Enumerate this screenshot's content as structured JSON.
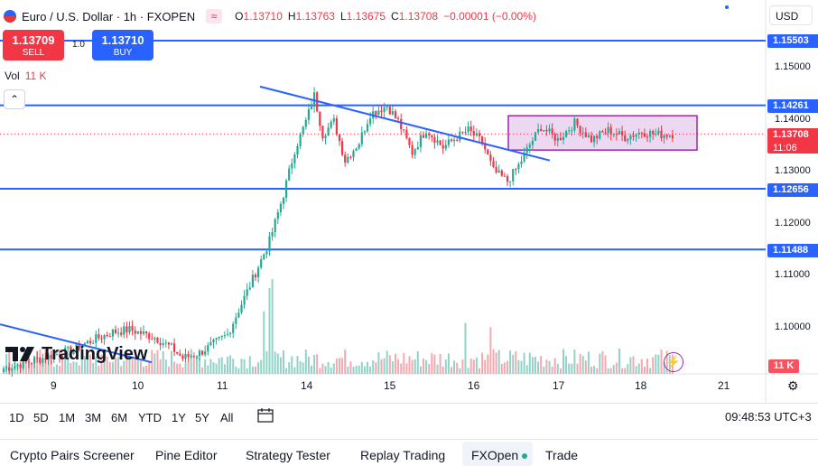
{
  "header": {
    "symbol_title": "Euro / U.S. Dollar · 1h · FXOPEN",
    "indicator_icon": "wave-icon",
    "ohlc": {
      "open_label": "O",
      "open": "1.13710",
      "high_label": "H",
      "high": "1.13763",
      "low_label": "L",
      "low": "1.13675",
      "close_label": "C",
      "close": "1.13708",
      "change": "−0.00001 (−0.00%)"
    },
    "currency": "USD"
  },
  "trade_buttons": {
    "sell_price": "1.13709",
    "sell_label": "SELL",
    "spread": "1.0",
    "buy_price": "1.13710",
    "buy_label": "BUY"
  },
  "volume_legend": {
    "label": "Vol",
    "value": "11 K"
  },
  "price_axis": {
    "ticks": [
      "1.15000",
      "1.14000",
      "1.13000",
      "1.12000",
      "1.11000",
      "1.10000"
    ],
    "level_tags": [
      "1.15503",
      "1.14261",
      "1.12656",
      "1.11488"
    ],
    "current_price": "1.13708",
    "countdown": "11:06",
    "volume_tag": "11 K"
  },
  "time_axis": {
    "ticks": [
      "9",
      "10",
      "11",
      "14",
      "15",
      "16",
      "17",
      "18",
      "21"
    ]
  },
  "toolbar": {
    "timeframes": [
      "1D",
      "5D",
      "1M",
      "3M",
      "6M",
      "YTD",
      "1Y",
      "5Y",
      "All"
    ],
    "clock": "09:48:53 UTC+3"
  },
  "footer_tabs": [
    "Crypto Pairs Screener",
    "Pine Editor",
    "Strategy Tester",
    "Replay Trading",
    "FXOpen",
    "Trade"
  ],
  "brand": {
    "logo_text": "TradingView"
  },
  "colors": {
    "up": "#22ab94",
    "down": "#f23645",
    "level_line": "#2962ff",
    "range_box": "#9c27b0"
  },
  "chart_data": {
    "type": "candlestick",
    "y_range": [
      1.091,
      1.159
    ],
    "levels": [
      1.15503,
      1.14261,
      1.12656,
      1.11488
    ],
    "current_price": 1.13708,
    "range_box": {
      "top": 1.1406,
      "bottom": 1.134
    },
    "trendline": {
      "start": 1.1462,
      "end": 1.132
    },
    "support_line_left": {
      "start": 1.1005,
      "end": 1.0932
    },
    "anchors": [
      [
        0,
        1.092
      ],
      [
        14,
        1.094
      ],
      [
        24,
        1.0955
      ],
      [
        32,
        1.0975
      ],
      [
        39,
        1.099
      ],
      [
        45,
        1.0995
      ],
      [
        54,
        1.098
      ],
      [
        60,
        1.096
      ],
      [
        64,
        1.094
      ],
      [
        70,
        1.095
      ],
      [
        80,
        1.0985
      ],
      [
        88,
        1.108
      ],
      [
        95,
        1.1165
      ],
      [
        100,
        1.1255
      ],
      [
        104,
        1.134
      ],
      [
        108,
        1.1395
      ],
      [
        111,
        1.1445
      ],
      [
        114,
        1.137
      ],
      [
        118,
        1.1395
      ],
      [
        122,
        1.132
      ],
      [
        127,
        1.1355
      ],
      [
        131,
        1.141
      ],
      [
        137,
        1.1425
      ],
      [
        141,
        1.1395
      ],
      [
        146,
        1.1335
      ],
      [
        151,
        1.138
      ],
      [
        157,
        1.1345
      ],
      [
        162,
        1.1365
      ],
      [
        166,
        1.1378
      ],
      [
        171,
        1.1355
      ],
      [
        175,
        1.13
      ],
      [
        180,
        1.128
      ],
      [
        184,
        1.131
      ],
      [
        188,
        1.135
      ],
      [
        192,
        1.1385
      ],
      [
        198,
        1.136
      ],
      [
        204,
        1.1392
      ],
      [
        210,
        1.136
      ],
      [
        216,
        1.1378
      ],
      [
        222,
        1.1365
      ],
      [
        228,
        1.1375
      ],
      [
        234,
        1.137
      ],
      [
        239,
        1.1371
      ]
    ]
  }
}
